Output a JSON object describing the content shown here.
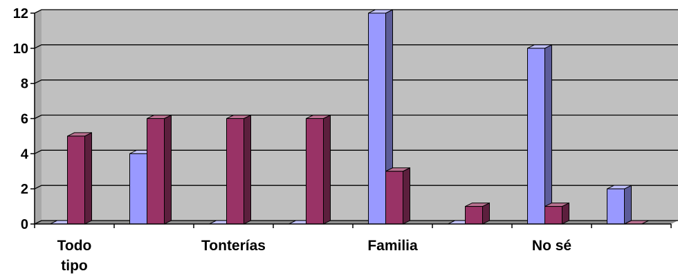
{
  "chart_data": {
    "type": "bar",
    "title": "",
    "xlabel": "",
    "ylabel": "",
    "ylim": [
      0,
      12
    ],
    "yticks": [
      0,
      2,
      4,
      6,
      8,
      10,
      12
    ],
    "grid": true,
    "legend": "none",
    "categories": [
      {
        "lines": [
          "Todo",
          "tipo"
        ]
      },
      {
        "lines": []
      },
      {
        "lines": [
          "Tonterías"
        ]
      },
      {
        "lines": []
      },
      {
        "lines": [
          "Familia"
        ]
      },
      {
        "lines": []
      },
      {
        "lines": [
          "No sé"
        ]
      },
      {
        "lines": []
      }
    ],
    "series": [
      {
        "values": [
          0,
          4,
          0,
          0,
          12,
          0,
          10,
          2
        ],
        "color": "#9999FF",
        "side_color": "#5C5C99",
        "top_color": "#C2C2FF"
      },
      {
        "values": [
          5,
          6,
          6,
          6,
          3,
          1,
          1,
          0
        ],
        "color": "#993366",
        "side_color": "#5C1F3D",
        "top_color": "#B8708F"
      }
    ],
    "plot_background": "#C0C0C0",
    "gridline_color": "#000000"
  }
}
